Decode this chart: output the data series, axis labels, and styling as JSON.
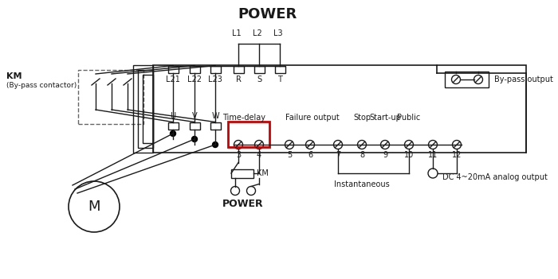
{
  "bg_color": "#ffffff",
  "line_color": "#1a1a1a",
  "red_box_color": "#cc0000",
  "gray_dash_color": "#666666",
  "title": "POWER",
  "power_bottom": "POWER",
  "L_labels": [
    "L1",
    "L2",
    "L3"
  ],
  "top_term_labels": [
    "L21",
    "L22",
    "L23",
    "R",
    "S",
    "T"
  ],
  "mid_term_labels": [
    "U",
    "V",
    "W"
  ],
  "ctrl_labels": [
    "3",
    "4",
    "5",
    "6",
    "7",
    "8",
    "9",
    "10",
    "11",
    "12"
  ],
  "bypass_label": "By-pass output",
  "time_delay_label": "Time-delay",
  "failure_label": "Failure output",
  "stop_label": "Stop",
  "startup_label": "Start-up",
  "public_label": "Public",
  "instant_label": "Instantaneous",
  "dc_label": "DC 4~20mA analog output",
  "km_label": "KM",
  "km_sub_label": "(By-pass contactor)",
  "km_coil_label": "KM",
  "motor_label": "M"
}
